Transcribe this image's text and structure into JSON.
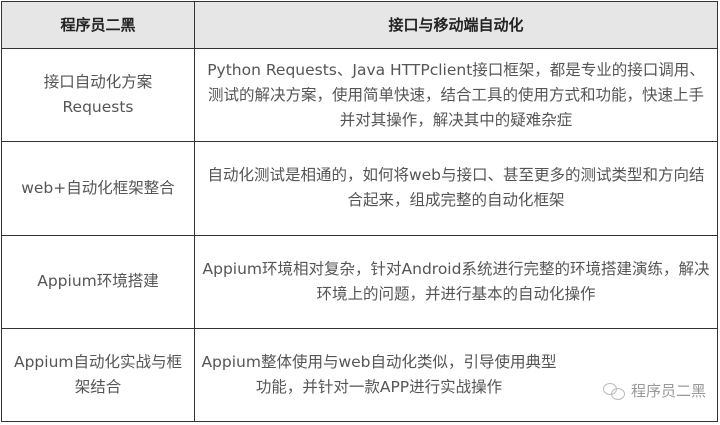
{
  "headers": [
    "程序员二黑",
    "接口与移动端自动化"
  ],
  "rows": [
    {
      "topic": "接口自动化方案 Requests",
      "desc": "Python Requests、Java HTTPclient接口框架，都是专业的接口调用、测试的解决方案，使用简单快速，结合工具的使用方式和功能，快速上手并对其操作，解决其中的疑难杂症"
    },
    {
      "topic": "web+自动化框架整合",
      "desc": "自动化测试是相通的，如何将web与接口、甚至更多的测试类型和方向结合起来，组成完整的自动化框架"
    },
    {
      "topic": "Appium环境搭建",
      "desc": "Appium环境相对复杂，针对Android系统进行完整的环境搭建演练，解决环境上的问题，并进行基本的自动化操作"
    },
    {
      "topic": "Appium自动化实战与框架结合",
      "desc": "Appium整体使用与web自动化类似，引导使用典型功能，并针对一款APP进行实战操作"
    }
  ],
  "watermark": {
    "icon": "wechat-icon",
    "text": "程序员二黑"
  }
}
